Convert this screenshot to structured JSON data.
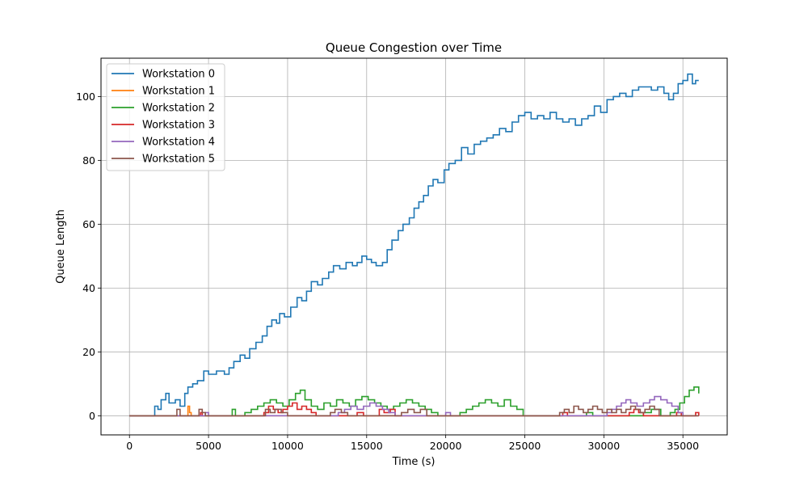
{
  "chart_data": {
    "type": "line",
    "step": true,
    "title": "Queue Congestion over Time",
    "xlabel": "Time (s)",
    "ylabel": "Queue Length",
    "xlim": [
      -1800,
      37800
    ],
    "ylim": [
      -6,
      112
    ],
    "xticks": [
      0,
      5000,
      10000,
      15000,
      20000,
      25000,
      30000,
      35000
    ],
    "yticks": [
      0,
      20,
      40,
      60,
      80,
      100
    ],
    "grid": true,
    "legend_position": "top-left",
    "series": [
      {
        "name": "Workstation 0",
        "color": "#1f77b4",
        "points": [
          [
            0,
            0
          ],
          [
            1300,
            0
          ],
          [
            1600,
            3
          ],
          [
            1800,
            2
          ],
          [
            2000,
            5
          ],
          [
            2300,
            7
          ],
          [
            2500,
            4
          ],
          [
            2900,
            5
          ],
          [
            3200,
            3
          ],
          [
            3500,
            7
          ],
          [
            3700,
            9
          ],
          [
            4000,
            10
          ],
          [
            4300,
            11
          ],
          [
            4700,
            14
          ],
          [
            5000,
            13
          ],
          [
            5500,
            14
          ],
          [
            6000,
            13
          ],
          [
            6300,
            15
          ],
          [
            6600,
            17
          ],
          [
            7000,
            19
          ],
          [
            7300,
            18
          ],
          [
            7600,
            21
          ],
          [
            8000,
            23
          ],
          [
            8400,
            25
          ],
          [
            8700,
            28
          ],
          [
            9000,
            30
          ],
          [
            9300,
            29
          ],
          [
            9500,
            32
          ],
          [
            9800,
            31
          ],
          [
            10200,
            34
          ],
          [
            10600,
            37
          ],
          [
            10900,
            36
          ],
          [
            11200,
            39
          ],
          [
            11500,
            42
          ],
          [
            11900,
            41
          ],
          [
            12200,
            43
          ],
          [
            12600,
            45
          ],
          [
            12900,
            47
          ],
          [
            13300,
            46
          ],
          [
            13700,
            48
          ],
          [
            14100,
            47
          ],
          [
            14400,
            48
          ],
          [
            14700,
            50
          ],
          [
            15000,
            49
          ],
          [
            15300,
            48
          ],
          [
            15600,
            47
          ],
          [
            16000,
            48
          ],
          [
            16300,
            52
          ],
          [
            16600,
            55
          ],
          [
            17000,
            58
          ],
          [
            17300,
            60
          ],
          [
            17700,
            62
          ],
          [
            18000,
            65
          ],
          [
            18300,
            67
          ],
          [
            18600,
            69
          ],
          [
            18900,
            72
          ],
          [
            19200,
            74
          ],
          [
            19500,
            73
          ],
          [
            19900,
            77
          ],
          [
            20200,
            79
          ],
          [
            20600,
            80
          ],
          [
            21000,
            84
          ],
          [
            21400,
            82
          ],
          [
            21800,
            85
          ],
          [
            22200,
            86
          ],
          [
            22600,
            87
          ],
          [
            23000,
            88
          ],
          [
            23400,
            90
          ],
          [
            23800,
            89
          ],
          [
            24200,
            92
          ],
          [
            24600,
            94
          ],
          [
            25000,
            95
          ],
          [
            25400,
            93
          ],
          [
            25800,
            94
          ],
          [
            26200,
            93
          ],
          [
            26600,
            95
          ],
          [
            27000,
            93
          ],
          [
            27400,
            92
          ],
          [
            27800,
            93
          ],
          [
            28200,
            91
          ],
          [
            28600,
            93
          ],
          [
            29000,
            94
          ],
          [
            29400,
            97
          ],
          [
            29800,
            95
          ],
          [
            30200,
            99
          ],
          [
            30600,
            100
          ],
          [
            31000,
            101
          ],
          [
            31400,
            100
          ],
          [
            31800,
            102
          ],
          [
            32200,
            103
          ],
          [
            32600,
            103
          ],
          [
            33000,
            102
          ],
          [
            33400,
            103
          ],
          [
            33800,
            101
          ],
          [
            34100,
            99
          ],
          [
            34400,
            101
          ],
          [
            34700,
            104
          ],
          [
            35000,
            105
          ],
          [
            35300,
            107
          ],
          [
            35600,
            104
          ],
          [
            35800,
            105
          ],
          [
            36000,
            105
          ]
        ]
      },
      {
        "name": "Workstation 1",
        "color": "#ff7f0e",
        "points": [
          [
            0,
            0
          ],
          [
            3600,
            0
          ],
          [
            3700,
            3
          ],
          [
            3800,
            1
          ],
          [
            3900,
            0
          ],
          [
            36000,
            0
          ]
        ]
      },
      {
        "name": "Workstation 2",
        "color": "#2ca02c",
        "points": [
          [
            0,
            0
          ],
          [
            6300,
            0
          ],
          [
            6500,
            2
          ],
          [
            6700,
            0
          ],
          [
            7300,
            1
          ],
          [
            7700,
            2
          ],
          [
            8100,
            3
          ],
          [
            8500,
            4
          ],
          [
            8900,
            5
          ],
          [
            9300,
            4
          ],
          [
            9700,
            3
          ],
          [
            10100,
            5
          ],
          [
            10500,
            7
          ],
          [
            10800,
            8
          ],
          [
            11100,
            5
          ],
          [
            11500,
            3
          ],
          [
            11900,
            2
          ],
          [
            12300,
            4
          ],
          [
            12700,
            3
          ],
          [
            13100,
            5
          ],
          [
            13500,
            4
          ],
          [
            13900,
            3
          ],
          [
            14300,
            5
          ],
          [
            14700,
            6
          ],
          [
            15100,
            5
          ],
          [
            15500,
            4
          ],
          [
            15900,
            3
          ],
          [
            16300,
            2
          ],
          [
            16700,
            3
          ],
          [
            17100,
            4
          ],
          [
            17500,
            5
          ],
          [
            17900,
            4
          ],
          [
            18300,
            3
          ],
          [
            18700,
            2
          ],
          [
            19100,
            1
          ],
          [
            19500,
            0
          ],
          [
            20500,
            0
          ],
          [
            20900,
            1
          ],
          [
            21300,
            2
          ],
          [
            21700,
            3
          ],
          [
            22100,
            4
          ],
          [
            22500,
            5
          ],
          [
            22900,
            4
          ],
          [
            23300,
            3
          ],
          [
            23700,
            5
          ],
          [
            24100,
            3
          ],
          [
            24500,
            2
          ],
          [
            24900,
            0
          ],
          [
            28500,
            0
          ],
          [
            28900,
            1
          ],
          [
            29300,
            0
          ],
          [
            31500,
            0
          ],
          [
            32500,
            1
          ],
          [
            33000,
            2
          ],
          [
            33600,
            0
          ],
          [
            34200,
            1
          ],
          [
            34500,
            2
          ],
          [
            34800,
            4
          ],
          [
            35100,
            6
          ],
          [
            35400,
            8
          ],
          [
            35700,
            9
          ],
          [
            36000,
            7
          ]
        ]
      },
      {
        "name": "Workstation 3",
        "color": "#d62728",
        "points": [
          [
            0,
            0
          ],
          [
            4300,
            0
          ],
          [
            4500,
            1
          ],
          [
            4600,
            0
          ],
          [
            8300,
            0
          ],
          [
            8500,
            1
          ],
          [
            8800,
            3
          ],
          [
            9100,
            2
          ],
          [
            9400,
            1
          ],
          [
            9700,
            2
          ],
          [
            10000,
            3
          ],
          [
            10300,
            4
          ],
          [
            10600,
            2
          ],
          [
            10900,
            3
          ],
          [
            11200,
            2
          ],
          [
            11500,
            1
          ],
          [
            11800,
            0
          ],
          [
            14000,
            0
          ],
          [
            14400,
            1
          ],
          [
            14800,
            0
          ],
          [
            15500,
            0
          ],
          [
            15800,
            2
          ],
          [
            16100,
            1
          ],
          [
            16500,
            2
          ],
          [
            16800,
            0
          ],
          [
            27100,
            0
          ],
          [
            27400,
            1
          ],
          [
            27700,
            0
          ],
          [
            31300,
            0
          ],
          [
            31600,
            1
          ],
          [
            31900,
            2
          ],
          [
            32200,
            1
          ],
          [
            32500,
            0
          ],
          [
            34300,
            0
          ],
          [
            34600,
            1
          ],
          [
            34900,
            0
          ],
          [
            35600,
            0
          ],
          [
            35800,
            1
          ],
          [
            36000,
            0
          ]
        ]
      },
      {
        "name": "Workstation 4",
        "color": "#9467bd",
        "points": [
          [
            0,
            0
          ],
          [
            4600,
            0
          ],
          [
            4800,
            1
          ],
          [
            5000,
            0
          ],
          [
            12800,
            0
          ],
          [
            13200,
            1
          ],
          [
            13600,
            2
          ],
          [
            14000,
            3
          ],
          [
            14400,
            2
          ],
          [
            14800,
            3
          ],
          [
            15200,
            4
          ],
          [
            15600,
            3
          ],
          [
            16000,
            2
          ],
          [
            16400,
            1
          ],
          [
            16800,
            0
          ],
          [
            19800,
            0
          ],
          [
            20000,
            1
          ],
          [
            20300,
            0
          ],
          [
            29900,
            0
          ],
          [
            30200,
            1
          ],
          [
            30500,
            2
          ],
          [
            30800,
            3
          ],
          [
            31100,
            4
          ],
          [
            31400,
            5
          ],
          [
            31700,
            4
          ],
          [
            32100,
            3
          ],
          [
            32500,
            4
          ],
          [
            32900,
            5
          ],
          [
            33200,
            6
          ],
          [
            33600,
            5
          ],
          [
            34000,
            4
          ],
          [
            34300,
            3
          ],
          [
            34700,
            1
          ],
          [
            35000,
            0
          ],
          [
            36000,
            0
          ]
        ]
      },
      {
        "name": "Workstation 5",
        "color": "#8c564b",
        "points": [
          [
            0,
            0
          ],
          [
            2800,
            0
          ],
          [
            3000,
            2
          ],
          [
            3200,
            0
          ],
          [
            4200,
            0
          ],
          [
            4400,
            2
          ],
          [
            4600,
            1
          ],
          [
            4800,
            0
          ],
          [
            8200,
            0
          ],
          [
            8600,
            2
          ],
          [
            8900,
            1
          ],
          [
            9200,
            2
          ],
          [
            9600,
            1
          ],
          [
            10000,
            0
          ],
          [
            12400,
            0
          ],
          [
            12700,
            1
          ],
          [
            13000,
            2
          ],
          [
            13400,
            1
          ],
          [
            13800,
            0
          ],
          [
            16900,
            0
          ],
          [
            17200,
            1
          ],
          [
            17600,
            2
          ],
          [
            18000,
            1
          ],
          [
            18400,
            2
          ],
          [
            18800,
            0
          ],
          [
            26900,
            0
          ],
          [
            27200,
            1
          ],
          [
            27500,
            2
          ],
          [
            27800,
            1
          ],
          [
            28100,
            3
          ],
          [
            28400,
            2
          ],
          [
            28700,
            1
          ],
          [
            29000,
            2
          ],
          [
            29300,
            3
          ],
          [
            29600,
            2
          ],
          [
            29900,
            1
          ],
          [
            30200,
            2
          ],
          [
            30500,
            1
          ],
          [
            30800,
            2
          ],
          [
            31100,
            1
          ],
          [
            31400,
            2
          ],
          [
            31700,
            3
          ],
          [
            32000,
            2
          ],
          [
            32300,
            1
          ],
          [
            32600,
            2
          ],
          [
            32900,
            3
          ],
          [
            33200,
            2
          ],
          [
            33500,
            0
          ],
          [
            36000,
            0
          ]
        ]
      }
    ]
  }
}
